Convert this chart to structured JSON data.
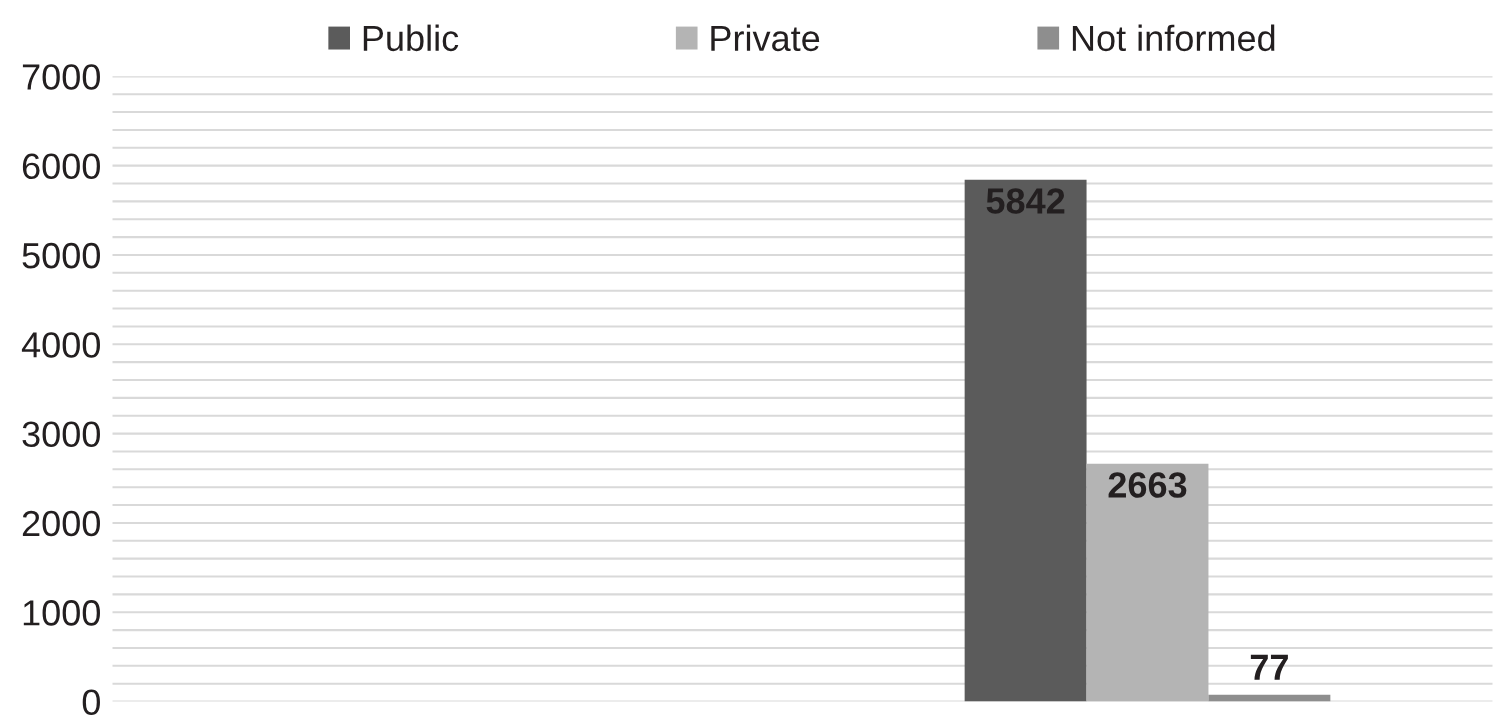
{
  "chart_data": {
    "type": "bar",
    "categories": [
      null,
      null
    ],
    "series": [
      {
        "name": "Public",
        "color": "#5b5b5b",
        "values": [
          null,
          5842
        ]
      },
      {
        "name": "Private",
        "color": "#b4b4b4",
        "values": [
          null,
          2663
        ]
      },
      {
        "name": "Not informed",
        "color": "#8e8e8e",
        "values": [
          null,
          77
        ]
      }
    ],
    "ylim": [
      0,
      7000
    ],
    "yticks": [
      0,
      {
        "value": 200,
        "label": null
      },
      {
        "value": 400,
        "label": null
      },
      {
        "value": 600,
        "label": null
      },
      {
        "value": 800,
        "label": null
      },
      1000,
      {
        "value": 1200,
        "label": null
      },
      {
        "value": 1400,
        "label": null
      },
      {
        "value": 1600,
        "label": null
      },
      {
        "value": 1800,
        "label": null
      },
      2000,
      {
        "value": 2200,
        "label": null
      },
      {
        "value": 2400,
        "label": null
      },
      {
        "value": 2600,
        "label": null
      },
      {
        "value": 2800,
        "label": null
      },
      3000,
      {
        "value": 3200,
        "label": null
      },
      {
        "value": 3400,
        "label": null
      },
      {
        "value": 3600,
        "label": null
      },
      {
        "value": 3800,
        "label": null
      },
      4000,
      {
        "value": 4200,
        "label": null
      },
      {
        "value": 4400,
        "label": null
      },
      {
        "value": 4600,
        "label": null
      },
      {
        "value": 4800,
        "label": null
      },
      5000,
      {
        "value": 5200,
        "label": null
      },
      {
        "value": 5400,
        "label": null
      },
      {
        "value": 5600,
        "label": null
      },
      {
        "value": 5800,
        "label": null
      },
      6000,
      {
        "value": 6200,
        "label": null
      },
      {
        "value": 6400,
        "label": null
      },
      {
        "value": 6600,
        "label": null
      },
      {
        "value": 6800,
        "label": null
      },
      7000
    ],
    "grid": "y",
    "legend": "top",
    "data_labels": true
  }
}
